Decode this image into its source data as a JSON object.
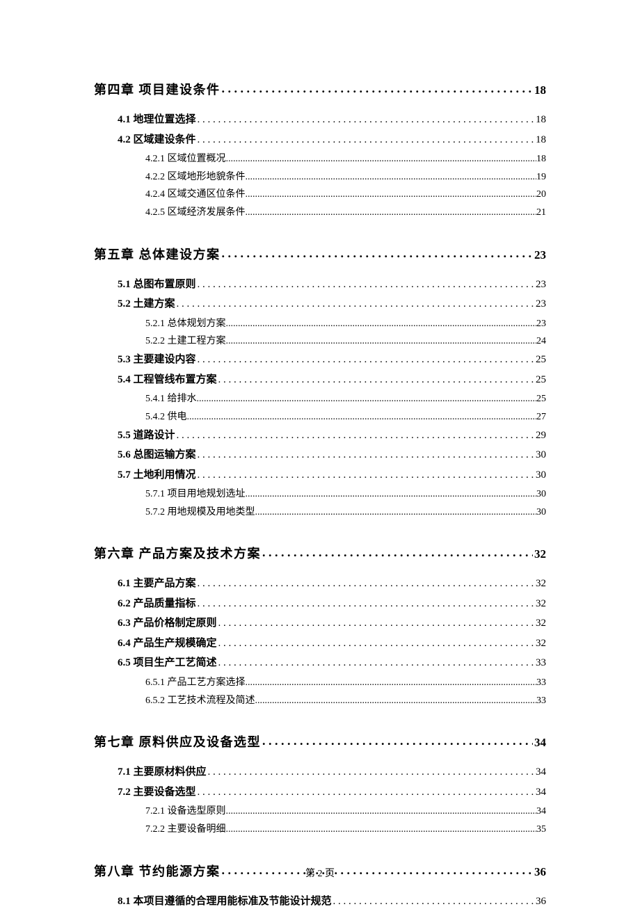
{
  "footer": "第 2 页",
  "toc": {
    "chapters": [
      {
        "label": "第四章 项目建设条件",
        "page": "18",
        "sections": [
          {
            "label": "4.1 地理位置选择",
            "page": "18",
            "subsections": []
          },
          {
            "label": "4.2 区域建设条件",
            "page": "18",
            "subsections": [
              {
                "label": "4.2.1 区域位置概况",
                "page": "18"
              },
              {
                "label": "4.2.2 区域地形地貌条件",
                "page": "19"
              },
              {
                "label": "4.2.4 区域交通区位条件",
                "page": "20"
              },
              {
                "label": "4.2.5 区域经济发展条件",
                "page": "21"
              }
            ]
          }
        ]
      },
      {
        "label": "第五章 总体建设方案",
        "page": "23",
        "sections": [
          {
            "label": "5.1 总图布置原则",
            "page": "23",
            "subsections": []
          },
          {
            "label": "5.2 土建方案",
            "page": "23",
            "subsections": [
              {
                "label": "5.2.1 总体规划方案",
                "page": "23"
              },
              {
                "label": "5.2.2 土建工程方案",
                "page": "24"
              }
            ]
          },
          {
            "label": "5.3 主要建设内容",
            "page": "25",
            "subsections": []
          },
          {
            "label": "5.4 工程管线布置方案",
            "page": "25",
            "subsections": [
              {
                "label": "5.4.1 给排水",
                "page": "25"
              },
              {
                "label": "5.4.2 供电",
                "page": "27"
              }
            ]
          },
          {
            "label": "5.5 道路设计",
            "page": "29",
            "subsections": []
          },
          {
            "label": "5.6 总图运输方案",
            "page": "30",
            "subsections": []
          },
          {
            "label": "5.7 土地利用情况",
            "page": "30",
            "subsections": [
              {
                "label": "5.7.1 项目用地规划选址",
                "page": "30"
              },
              {
                "label": "5.7.2 用地规模及用地类型",
                "page": "30"
              }
            ]
          }
        ]
      },
      {
        "label": "第六章 产品方案及技术方案",
        "page": "32",
        "sections": [
          {
            "label": "6.1 主要产品方案",
            "page": "32",
            "subsections": []
          },
          {
            "label": "6.2 产品质量指标",
            "page": "32",
            "subsections": []
          },
          {
            "label": "6.3 产品价格制定原则",
            "page": "32",
            "subsections": []
          },
          {
            "label": "6.4 产品生产规模确定",
            "page": "32",
            "subsections": []
          },
          {
            "label": "6.5 项目生产工艺简述",
            "page": "33",
            "subsections": [
              {
                "label": "6.5.1 产品工艺方案选择",
                "page": "33"
              },
              {
                "label": "6.5.2 工艺技术流程及简述",
                "page": "33"
              }
            ]
          }
        ]
      },
      {
        "label": "第七章 原料供应及设备选型",
        "page": "34",
        "sections": [
          {
            "label": "7.1 主要原材料供应",
            "page": "34",
            "subsections": []
          },
          {
            "label": "7.2 主要设备选型",
            "page": "34",
            "subsections": [
              {
                "label": "7.2.1 设备选型原则",
                "page": "34"
              },
              {
                "label": "7.2.2 主要设备明细",
                "page": "35"
              }
            ]
          }
        ]
      },
      {
        "label": "第八章 节约能源方案",
        "page": "36",
        "sections": [
          {
            "label": "8.1 本项目遵循的合理用能标准及节能设计规范",
            "page": "36",
            "subsections": []
          }
        ]
      }
    ]
  }
}
